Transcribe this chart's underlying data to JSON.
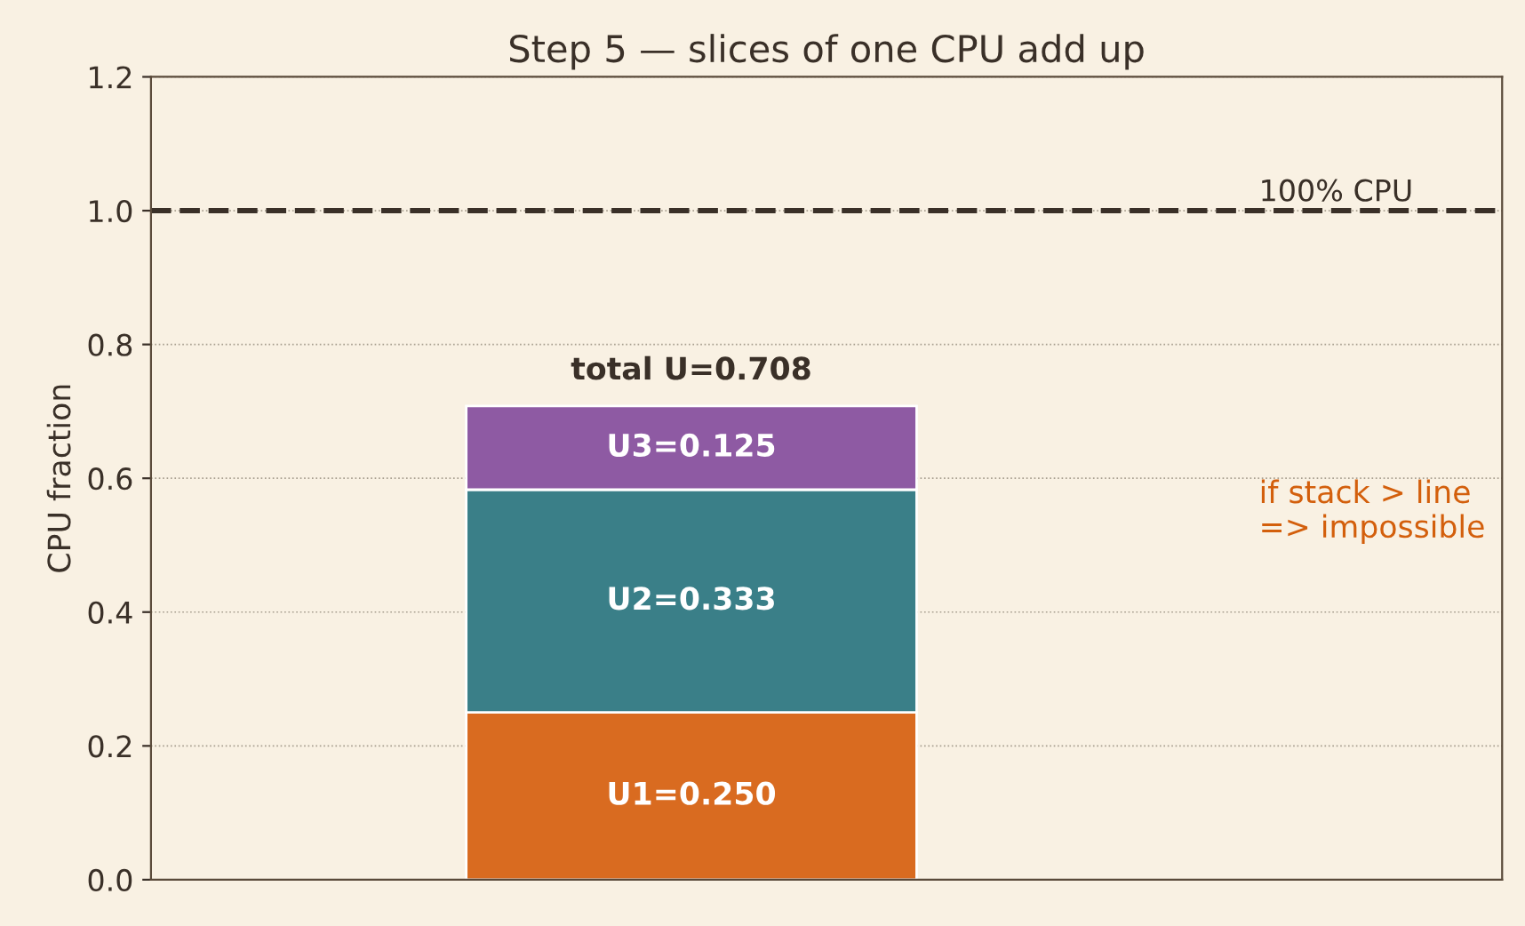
{
  "chart_data": {
    "type": "bar",
    "stacked": true,
    "title": "Step 5 — slices of one CPU add up",
    "ylabel": "CPU fraction",
    "categories": [
      null
    ],
    "series": [
      {
        "color": "#d96b20",
        "values": [
          0.25
        ],
        "value_labels": [
          "U1=0.250"
        ]
      },
      {
        "color": "#3a7f88",
        "values": [
          0.333
        ],
        "value_labels": [
          "U2=0.333"
        ]
      },
      {
        "color": "#8e5aa3",
        "values": [
          0.125
        ],
        "value_labels": [
          "U3=0.125"
        ]
      }
    ],
    "totals": [
      "total U=0.708"
    ],
    "ylim": [
      0,
      1.2
    ],
    "yticks": [
      {
        "value": 0,
        "label": "0.0"
      },
      {
        "value": 0.2,
        "label": "0.2"
      },
      {
        "value": 0.4,
        "label": "0.4"
      },
      {
        "value": 0.6,
        "label": "0.6"
      },
      {
        "value": 0.8,
        "label": "0.8"
      },
      {
        "value": 1.0,
        "label": "1.0"
      },
      {
        "value": 1.2,
        "label": "1.2"
      }
    ],
    "ref_lines": [
      {
        "axis": "y",
        "value": 1.0,
        "label": "100% CPU",
        "color": "#3a3028",
        "line_style": "dashed"
      }
    ],
    "annotations": [
      "if stack > line\n=> impossible"
    ],
    "grid": "y",
    "tick_labels": "y"
  }
}
